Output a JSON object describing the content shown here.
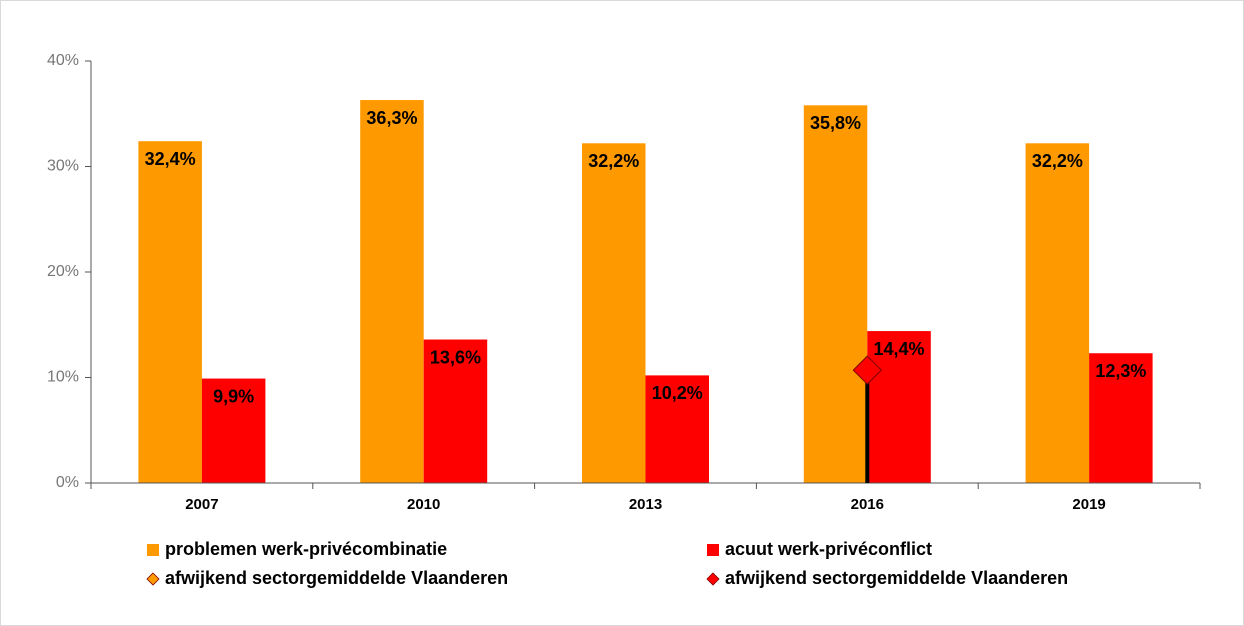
{
  "chart_data": {
    "type": "bar",
    "categories": [
      "2007",
      "2010",
      "2013",
      "2016",
      "2019"
    ],
    "series": [
      {
        "name": "problemen werk-privécombinatie",
        "color": "#ff9900",
        "kind": "bar",
        "values": [
          32.4,
          36.3,
          32.2,
          35.8,
          32.2
        ],
        "value_labels": [
          "32,4%",
          "36,3%",
          "32,2%",
          "35,8%",
          "32,2%"
        ]
      },
      {
        "name": "acuut werk-privéconflict",
        "color": "#ff0000",
        "kind": "bar",
        "values": [
          9.9,
          13.6,
          10.2,
          14.4,
          12.3
        ],
        "value_labels": [
          "9,9%",
          "13,6%",
          "10,2%",
          "14,4%",
          "12,3%"
        ]
      },
      {
        "name": "afwijkend sectorgemiddelde Vlaanderen",
        "color": "#ff9900",
        "kind": "diamond",
        "values": [
          null,
          null,
          null,
          null,
          null
        ]
      },
      {
        "name": "afwijkend sectorgemiddelde Vlaanderen",
        "color": "#ff0000",
        "kind": "diamond",
        "drop_line": true,
        "values": [
          null,
          null,
          null,
          10.7,
          null
        ]
      }
    ],
    "ylim": [
      0,
      40
    ],
    "yticks": [
      {
        "value": 0,
        "label": "0%"
      },
      {
        "value": 10,
        "label": "10%"
      },
      {
        "value": 20,
        "label": "20%"
      },
      {
        "value": 30,
        "label": "30%"
      },
      {
        "value": 40,
        "label": "40%"
      }
    ],
    "grid": false
  }
}
